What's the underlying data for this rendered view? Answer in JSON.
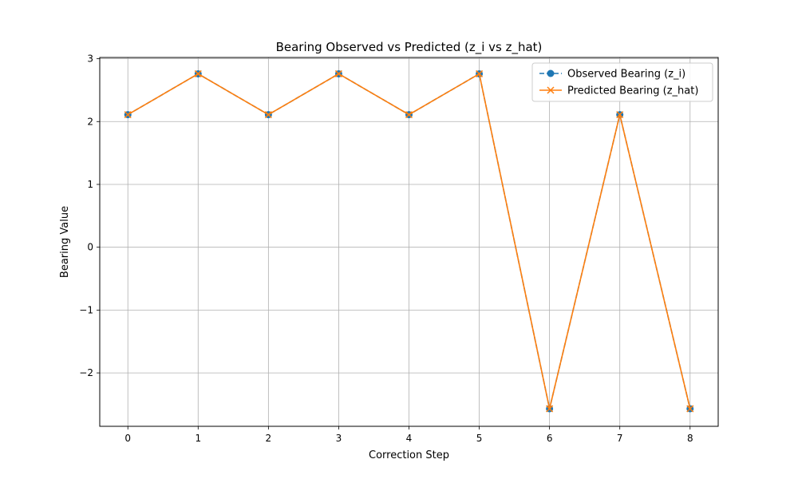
{
  "chart_data": {
    "type": "line",
    "title": "Bearing Observed vs Predicted (z_i vs z_hat)",
    "xlabel": "Correction Step",
    "ylabel": "Bearing Value",
    "x": [
      0,
      1,
      2,
      3,
      4,
      5,
      6,
      7,
      8
    ],
    "xlim": [
      -0.4,
      8.4
    ],
    "ylim": [
      -2.85,
      3.02
    ],
    "xticks": [
      0,
      1,
      2,
      3,
      4,
      5,
      6,
      7,
      8
    ],
    "yticks": [
      -2,
      -1,
      0,
      1,
      2,
      3
    ],
    "ytick_labels": [
      "−2",
      "−1",
      "0",
      "1",
      "2",
      "3"
    ],
    "grid": true,
    "legend_position": "top-right",
    "series": [
      {
        "name": "Observed Bearing (z_i)",
        "color": "#1f77b4",
        "marker": "circle",
        "line_style": "dashed",
        "values": [
          2.11,
          2.76,
          2.11,
          2.76,
          2.11,
          2.76,
          -2.57,
          2.11,
          -2.57
        ]
      },
      {
        "name": "Predicted Bearing (z_hat)",
        "color": "#ff7f0e",
        "marker": "x",
        "line_style": "solid",
        "values": [
          2.11,
          2.76,
          2.11,
          2.76,
          2.11,
          2.76,
          -2.57,
          2.11,
          -2.57
        ]
      }
    ]
  }
}
